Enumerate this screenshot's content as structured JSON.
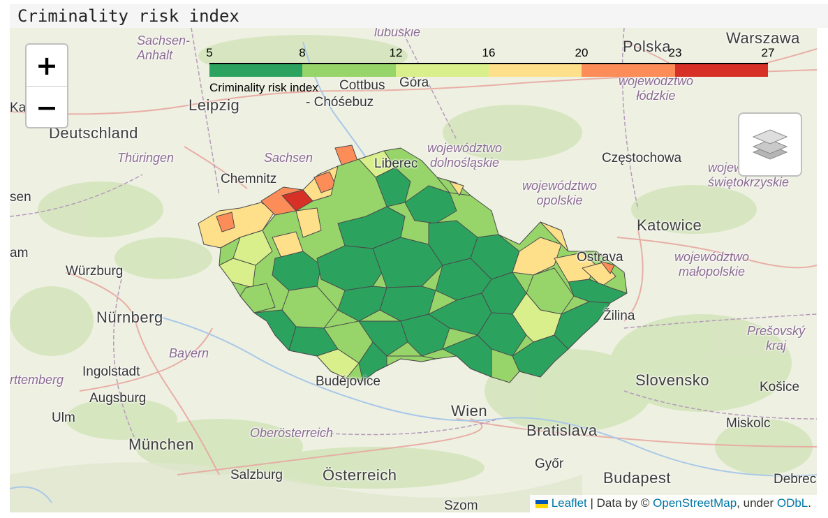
{
  "title": "Criminality risk index",
  "legend": {
    "caption": "Criminality risk index",
    "ticks": [
      "5",
      "8",
      "12",
      "16",
      "20",
      "23",
      "27"
    ],
    "colors": [
      "#2ca25f",
      "#97d46a",
      "#d9ef8b",
      "#fee08b",
      "#fc8d59",
      "#d73027"
    ]
  },
  "controls": {
    "zoom_in": "+",
    "zoom_out": "−"
  },
  "labels": {
    "sachsen_anhalt": "Sachsen-\nAnhalt",
    "lubuskie": "lubuskie",
    "polska": "Polska",
    "warszawa": "Warszawa",
    "leipzig": "Leipzig",
    "cottbus": "Cottbus",
    "chosebuz": "- Chóśebuz",
    "gora": "Góra",
    "lodzkie": "województwo\nłódzkie",
    "deutschland": "Deutschland",
    "thuringen": "Thüringen",
    "sachsen": "Sachsen",
    "dolnoslaskie": "województwo\ndolnośląskie",
    "czestochowa": "Częstochowa",
    "swietokrzyskie": "wojewódzwo\nświętokrzyskie",
    "chemnitz": "Chemnitz",
    "liberec": "Liberec",
    "opolskie": "województwo\nopolskie",
    "katowice": "Katowice",
    "ostrava": "Ostrava",
    "malopolskie": "województwo\nmałopolskie",
    "wurzburg": "Würzburg",
    "nurnberg": "Nürnberg",
    "zilina": "Žilina",
    "presovsky": "Prešovský\nkraj",
    "bayern": "Bayern",
    "ingolstadt": "Ingolstadt",
    "wurttemberg": "rttemberg",
    "budejovice": "Budějovice",
    "slovensko": "Slovensko",
    "kosice": "Košice",
    "augsburg": "Augsburg",
    "ulm": "Ulm",
    "wien": "Wien",
    "bratislava": "Bratislava",
    "miskolc": "Miskolc",
    "oberosterreich": "Oberösterreich",
    "munchen": "München",
    "gyor": "Győr",
    "salzburg": "Salzburg",
    "osterreich": "Österreich",
    "budapest": "Budapest",
    "debrecen": "Debrec",
    "szombathely": "Szom",
    "sen": "sen",
    "am": "am",
    "ka": "Ka"
  },
  "attribution": {
    "leaflet": "Leaflet",
    "data_by": " | Data by © ",
    "osm": "OpenStreetMap",
    "under": ", under ",
    "odbl": "ODbL",
    "end": "."
  }
}
